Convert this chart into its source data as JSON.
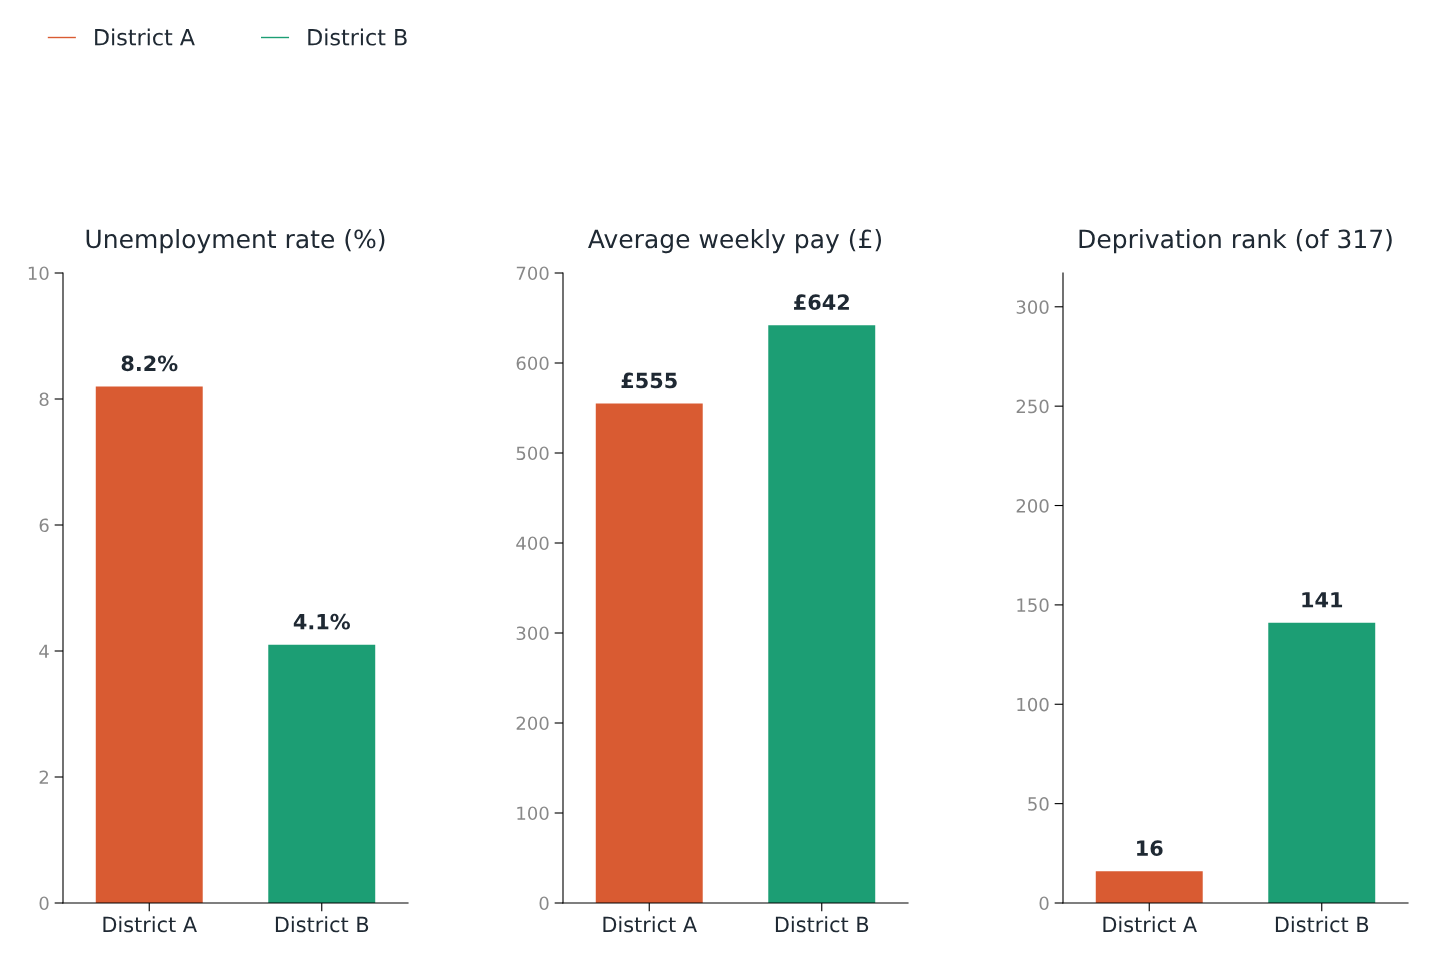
{
  "chart_data": [
    {
      "type": "bar",
      "title": "Unemployment rate (%)",
      "categories": [
        "District A",
        "District B"
      ],
      "stacked": true,
      "series": [
        {
          "name": "District A",
          "color": "#d95b32",
          "values": [
            8.2,
            null
          ],
          "value_labels": [
            "8.2%",
            null
          ]
        },
        {
          "name": "District B",
          "color": "#1c9e74",
          "values": [
            null,
            4.1
          ],
          "value_labels": [
            null,
            "4.1%"
          ]
        }
      ],
      "ylim": [
        0,
        10
      ],
      "yticks": [
        0,
        2,
        4,
        6,
        8,
        10
      ],
      "grid": false,
      "legend": "top left"
    },
    {
      "type": "bar",
      "title": "Average weekly pay (£)",
      "categories": [
        "District A",
        "District B"
      ],
      "stacked": true,
      "series": [
        {
          "color": "#d95b32",
          "values": [
            555,
            null
          ],
          "value_labels": [
            "£555",
            null
          ]
        },
        {
          "color": "#1c9e74",
          "values": [
            null,
            642
          ],
          "value_labels": [
            null,
            "£642"
          ]
        }
      ],
      "ylim": [
        0,
        700
      ],
      "yticks": [
        0,
        100,
        200,
        300,
        400,
        500,
        600,
        700
      ],
      "grid": false
    },
    {
      "type": "bar",
      "title": "Deprivation rank (of 317)",
      "categories": [
        "District A",
        "District B"
      ],
      "stacked": true,
      "data_labels": true,
      "series": [
        {
          "color": "#d95b32",
          "values": [
            16,
            null
          ]
        },
        {
          "color": "#1c9e74",
          "values": [
            null,
            141
          ]
        }
      ],
      "ylim": [
        0,
        317
      ],
      "yticks": [
        0,
        50,
        100,
        150,
        200,
        250,
        300
      ],
      "grid": false
    }
  ]
}
